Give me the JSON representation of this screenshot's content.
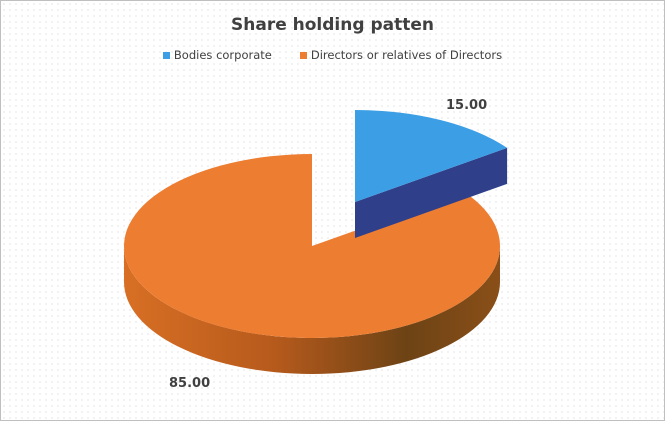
{
  "chart_data": {
    "type": "pie",
    "style": "3d-exploded",
    "title": "Share holding patten",
    "legend_position": "top",
    "categories": [
      "Bodies corporate",
      "Directors or relatives of Directors"
    ],
    "values": [
      15.0,
      85.0
    ],
    "data_labels": [
      "15.00",
      "85.00"
    ],
    "colors": [
      "#3c9ee5",
      "#ed7d31"
    ],
    "side_colors": [
      "#2f3f8a",
      "#a0521c"
    ]
  }
}
